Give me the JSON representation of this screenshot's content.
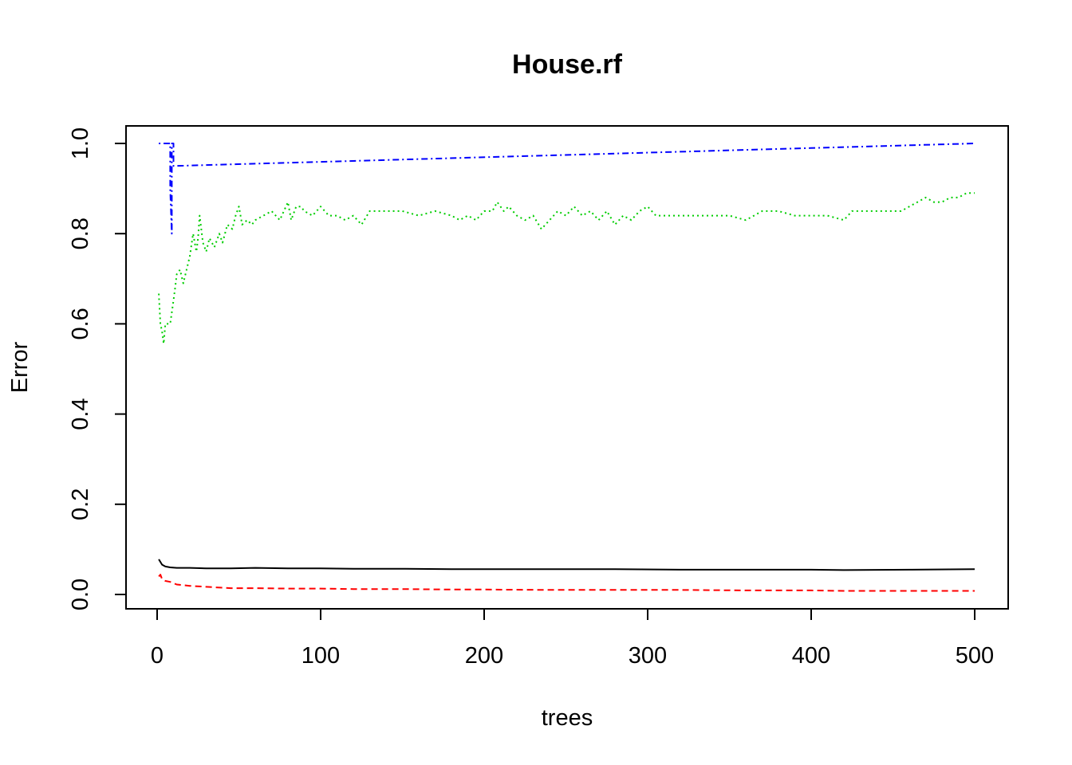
{
  "chart_data": {
    "type": "line",
    "title": "House.rf",
    "xlabel": "trees",
    "ylabel": "Error",
    "xlim": [
      0,
      500
    ],
    "ylim": [
      0,
      1.0
    ],
    "x_ticks": [
      0,
      100,
      200,
      300,
      400,
      500
    ],
    "x_tick_labels": [
      "0",
      "100",
      "200",
      "300",
      "400",
      "500"
    ],
    "y_ticks": [
      0,
      0.2,
      0.4,
      0.6,
      0.8,
      1.0
    ],
    "y_tick_labels": [
      "0.0",
      "0.2",
      "0.4",
      "0.6",
      "0.8",
      "1.0"
    ],
    "grid": false,
    "legend": "none",
    "series": [
      {
        "color": "#000000",
        "dash": "solid",
        "x": [
          1,
          3,
          5,
          8,
          12,
          20,
          30,
          45,
          60,
          80,
          100,
          120,
          150,
          180,
          200,
          240,
          280,
          320,
          360,
          400,
          420,
          460,
          500
        ],
        "values": [
          0.078,
          0.066,
          0.062,
          0.06,
          0.059,
          0.059,
          0.058,
          0.058,
          0.059,
          0.058,
          0.058,
          0.057,
          0.057,
          0.056,
          0.056,
          0.056,
          0.056,
          0.055,
          0.055,
          0.055,
          0.054,
          0.055,
          0.056
        ]
      },
      {
        "color": "#ff0000",
        "dash": "dashed",
        "x": [
          1,
          2,
          3,
          5,
          8,
          12,
          20,
          30,
          45,
          60,
          80,
          100,
          120,
          150,
          180,
          200,
          240,
          280,
          320,
          360,
          400,
          420,
          460,
          500
        ],
        "values": [
          0.04,
          0.044,
          0.034,
          0.03,
          0.028,
          0.022,
          0.019,
          0.017,
          0.014,
          0.014,
          0.013,
          0.013,
          0.012,
          0.012,
          0.011,
          0.011,
          0.01,
          0.01,
          0.01,
          0.009,
          0.009,
          0.008,
          0.008,
          0.008
        ]
      },
      {
        "color": "#00cd00",
        "dash": "dotted",
        "x": [
          1,
          2,
          3,
          4,
          5,
          6,
          7,
          8,
          10,
          11,
          12,
          14,
          16,
          18,
          20,
          22,
          24,
          25,
          26,
          28,
          30,
          32,
          35,
          38,
          40,
          43,
          46,
          48,
          50,
          52,
          55,
          58,
          60,
          65,
          70,
          75,
          80,
          82,
          85,
          88,
          90,
          95,
          100,
          105,
          110,
          115,
          120,
          125,
          130,
          140,
          150,
          160,
          170,
          180,
          185,
          190,
          195,
          200,
          205,
          208,
          212,
          215,
          220,
          225,
          230,
          235,
          240,
          245,
          250,
          255,
          260,
          265,
          270,
          275,
          280,
          285,
          290,
          295,
          300,
          305,
          310,
          320,
          340,
          345,
          350,
          360,
          365,
          370,
          380,
          390,
          400,
          410,
          420,
          425,
          430,
          440,
          450,
          455,
          460,
          465,
          470,
          475,
          480,
          485,
          490,
          495,
          500
        ],
        "values": [
          0.667,
          0.6,
          0.583,
          0.556,
          0.6,
          0.6,
          0.6,
          0.6,
          0.652,
          0.68,
          0.71,
          0.72,
          0.69,
          0.72,
          0.75,
          0.8,
          0.76,
          0.79,
          0.84,
          0.78,
          0.76,
          0.79,
          0.77,
          0.8,
          0.78,
          0.82,
          0.81,
          0.84,
          0.86,
          0.82,
          0.83,
          0.82,
          0.83,
          0.84,
          0.85,
          0.83,
          0.87,
          0.83,
          0.86,
          0.86,
          0.85,
          0.84,
          0.86,
          0.84,
          0.84,
          0.83,
          0.84,
          0.82,
          0.85,
          0.85,
          0.85,
          0.84,
          0.85,
          0.84,
          0.83,
          0.84,
          0.83,
          0.85,
          0.85,
          0.87,
          0.85,
          0.86,
          0.84,
          0.83,
          0.84,
          0.81,
          0.83,
          0.85,
          0.84,
          0.86,
          0.84,
          0.85,
          0.83,
          0.85,
          0.82,
          0.84,
          0.83,
          0.85,
          0.86,
          0.84,
          0.84,
          0.84,
          0.84,
          0.84,
          0.84,
          0.83,
          0.84,
          0.85,
          0.85,
          0.84,
          0.84,
          0.84,
          0.83,
          0.85,
          0.85,
          0.85,
          0.85,
          0.85,
          0.86,
          0.87,
          0.88,
          0.87,
          0.87,
          0.88,
          0.88,
          0.89,
          0.89
        ]
      },
      {
        "color": "#0000ff",
        "dash": "dotdash",
        "x": [
          1,
          8,
          8,
          9,
          9,
          10,
          10,
          500
        ],
        "values": [
          1.0,
          1.0,
          0.9,
          0.8,
          1.0,
          1.0,
          0.95,
          1.0
        ]
      }
    ]
  }
}
